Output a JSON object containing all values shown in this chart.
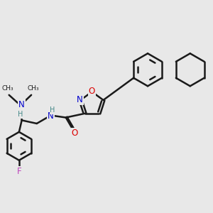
{
  "background_color": "#e8e8e8",
  "bond_color": "#1a1a1a",
  "bond_width": 1.8,
  "atom_colors": {
    "N": "#0000cc",
    "O": "#dd0000",
    "F": "#bb44bb",
    "H": "#448888",
    "C": "#1a1a1a"
  },
  "font_size": 8.5,
  "fig_size": [
    3.0,
    3.0
  ],
  "dpi": 100
}
